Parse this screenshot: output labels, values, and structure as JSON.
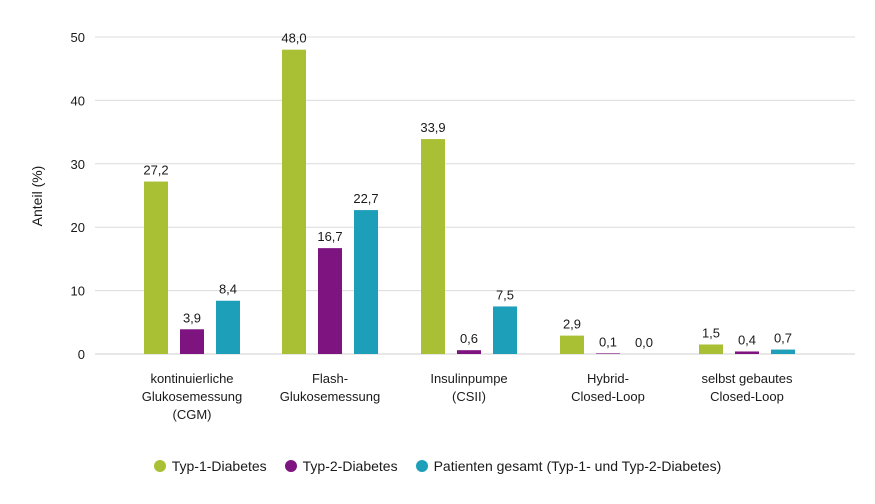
{
  "chart_data": {
    "type": "bar",
    "ylabel": "Anteil (%)",
    "ylim": [
      0,
      50
    ],
    "yticks": [
      "0",
      "10",
      "20",
      "30",
      "40",
      "50"
    ],
    "grid": true,
    "legend_position": "bottom",
    "categories": [
      [
        "kontinuierliche",
        "Glukosemessung",
        "(CGM)"
      ],
      [
        "Flash-",
        "Glukosemessung"
      ],
      [
        "Insulinpumpe",
        "(CSII)"
      ],
      [
        "Hybrid-",
        "Closed-Loop"
      ],
      [
        "selbst gebautes",
        "Closed-Loop"
      ]
    ],
    "series": [
      {
        "name": "Typ-1-Diabetes",
        "color": "#a9c034",
        "values": [
          27.2,
          48.0,
          33.9,
          2.9,
          1.5
        ],
        "labels": [
          "27,2",
          "48,0",
          "33,9",
          "2,9",
          "1,5"
        ]
      },
      {
        "name": "Typ-2-Diabetes",
        "color": "#7e1480",
        "values": [
          3.9,
          16.7,
          0.6,
          0.1,
          0.4
        ],
        "labels": [
          "3,9",
          "16,7",
          "0,6",
          "0,1",
          "0,4"
        ]
      },
      {
        "name": "Patienten gesamt (Typ-1- und Typ-2-Diabetes)",
        "color": "#1d9fba",
        "values": [
          8.4,
          22.7,
          7.5,
          0.0,
          0.7
        ],
        "labels": [
          "8,4",
          "22,7",
          "7,5",
          "0,0",
          "0,7"
        ]
      }
    ]
  }
}
